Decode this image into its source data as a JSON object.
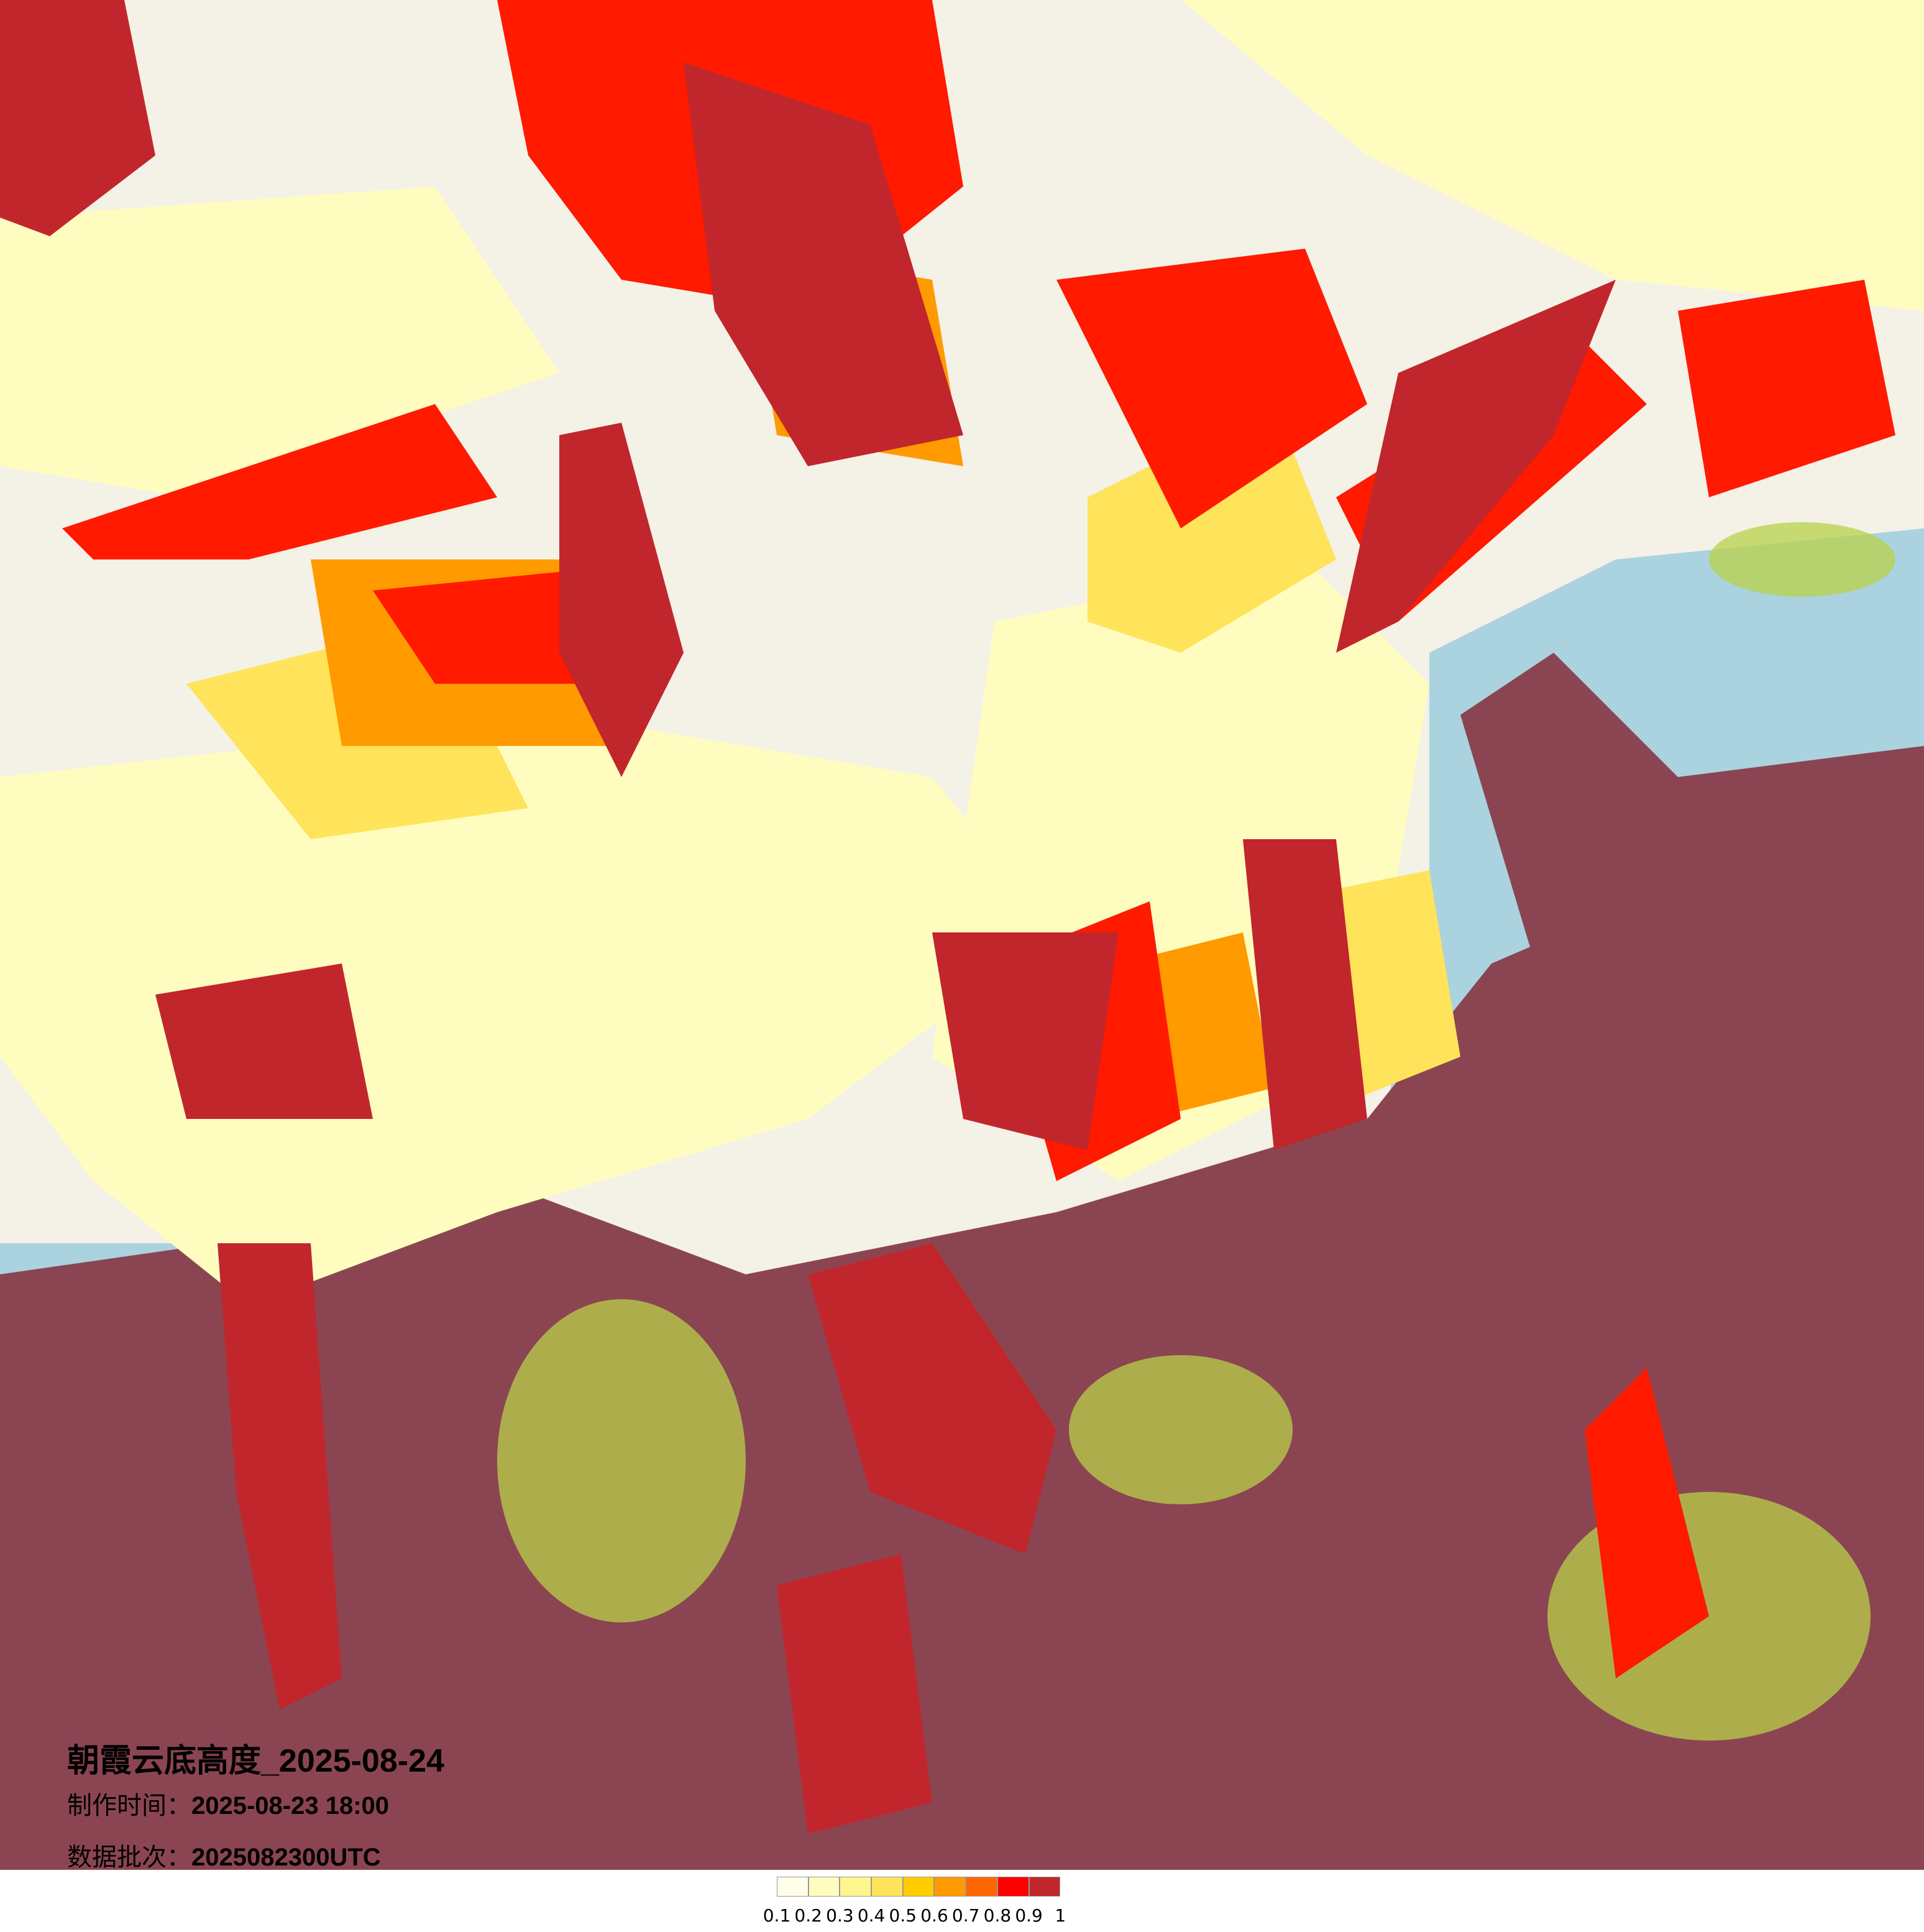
{
  "map": {
    "title_cn": "朝霞云底高度",
    "title_date": "_2025-08-24",
    "made_label": "制作时间：",
    "made_value": "2025-08-23 18:00",
    "batch_label": "数据批次：",
    "batch_value": "2025082300UTC",
    "colors": {
      "land": "#f2efe9",
      "sea": "#aad3df",
      "cloud_cover": "#8b4552",
      "highlight_green": "#b8d24a"
    }
  },
  "legend": {
    "ticks": [
      "0.1",
      "0.2",
      "0.3",
      "0.4",
      "0.5",
      "0.6",
      "0.7",
      "0.8",
      "0.9",
      "1"
    ],
    "colors": [
      "#fffee8",
      "#fffcc0",
      "#fff68e",
      "#ffe35a",
      "#ffcc00",
      "#ff9a00",
      "#ff6600",
      "#ff0000",
      "#c1262c"
    ]
  }
}
